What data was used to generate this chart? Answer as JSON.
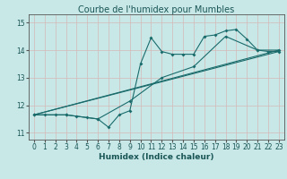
{
  "title": "Courbe de l'humidex pour Mumbles",
  "xlabel": "Humidex (Indice chaleur)",
  "ylabel": "",
  "xlim": [
    -0.5,
    23.5
  ],
  "ylim": [
    10.75,
    15.3
  ],
  "yticks": [
    11,
    12,
    13,
    14,
    15
  ],
  "xticks": [
    0,
    1,
    2,
    3,
    4,
    5,
    6,
    7,
    8,
    9,
    10,
    11,
    12,
    13,
    14,
    15,
    16,
    17,
    18,
    19,
    20,
    21,
    22,
    23
  ],
  "bg_color": "#c8e8e8",
  "grid_color": "#aad4d4",
  "line_color": "#1a6b6b",
  "series1_x": [
    0,
    1,
    2,
    3,
    4,
    5,
    6,
    7,
    8,
    9,
    10,
    11,
    12,
    13,
    14,
    15,
    16,
    17,
    18,
    19,
    20,
    21,
    22,
    23
  ],
  "series1_y": [
    11.65,
    11.65,
    11.65,
    11.65,
    11.6,
    11.55,
    11.5,
    11.2,
    11.65,
    11.8,
    13.5,
    14.45,
    13.95,
    13.85,
    13.85,
    13.85,
    14.5,
    14.55,
    14.7,
    14.75,
    14.4,
    14.0,
    13.95,
    13.95
  ],
  "series2_x": [
    0,
    3,
    6,
    9,
    12,
    15,
    18,
    21,
    23
  ],
  "series2_y": [
    11.65,
    11.65,
    11.5,
    12.15,
    13.0,
    13.4,
    14.5,
    14.0,
    14.0
  ],
  "series3_x": [
    0,
    23
  ],
  "series3_y": [
    11.65,
    13.95
  ],
  "series4_x": [
    0,
    23
  ],
  "series4_y": [
    11.65,
    14.0
  ],
  "figsize": [
    3.2,
    2.0
  ],
  "dpi": 100,
  "title_fontsize": 7,
  "label_fontsize": 6.5,
  "tick_fontsize": 5.5
}
